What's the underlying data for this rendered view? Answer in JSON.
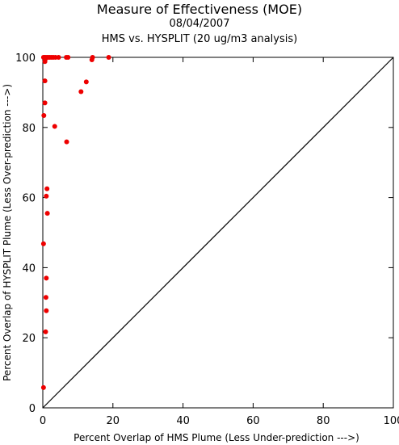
{
  "chart_data": {
    "type": "scatter",
    "title": "Measure of Effectiveness (MOE)",
    "subtitle_date": "08/04/2007",
    "subtitle_analysis": "HMS vs. HYSPLIT  (20 ug/m3 analysis)",
    "xlabel": "Percent Overlap of HMS Plume (Less Under-prediction --->)",
    "ylabel": "Percent Overlap of HYSPLIT Plume (Less Over-prediction --->)",
    "xlim": [
      0,
      100
    ],
    "ylim": [
      0,
      100
    ],
    "xticks": [
      "0",
      "20",
      "40",
      "60",
      "80",
      "100"
    ],
    "yticks": [
      "0",
      "20",
      "40",
      "60",
      "80",
      "100"
    ],
    "grid": false,
    "reference_line": "diagonal y = x",
    "colors": {
      "points": "#ee0000",
      "line": "#000000"
    },
    "points": [
      {
        "x": 0.2,
        "y": 100.0
      },
      {
        "x": 0.5,
        "y": 100.0
      },
      {
        "x": 0.8,
        "y": 100.0
      },
      {
        "x": 1.2,
        "y": 100.0
      },
      {
        "x": 1.6,
        "y": 100.0
      },
      {
        "x": 2.0,
        "y": 100.0
      },
      {
        "x": 2.5,
        "y": 100.0
      },
      {
        "x": 3.0,
        "y": 100.0
      },
      {
        "x": 3.6,
        "y": 100.0
      },
      {
        "x": 4.5,
        "y": 100.0
      },
      {
        "x": 6.7,
        "y": 100.0
      },
      {
        "x": 7.2,
        "y": 100.0
      },
      {
        "x": 14.2,
        "y": 100.0
      },
      {
        "x": 18.8,
        "y": 100.0
      },
      {
        "x": 14.0,
        "y": 99.3
      },
      {
        "x": 0.7,
        "y": 99.5
      },
      {
        "x": 0.6,
        "y": 98.8
      },
      {
        "x": 0.6,
        "y": 93.3
      },
      {
        "x": 12.4,
        "y": 93.0
      },
      {
        "x": 10.9,
        "y": 90.2
      },
      {
        "x": 0.6,
        "y": 87.0
      },
      {
        "x": 0.3,
        "y": 83.4
      },
      {
        "x": 3.4,
        "y": 80.3
      },
      {
        "x": 6.8,
        "y": 75.9
      },
      {
        "x": 1.2,
        "y": 62.5
      },
      {
        "x": 1.0,
        "y": 60.4
      },
      {
        "x": 1.3,
        "y": 55.5
      },
      {
        "x": 0.2,
        "y": 46.8
      },
      {
        "x": 1.0,
        "y": 37.0
      },
      {
        "x": 0.9,
        "y": 31.5
      },
      {
        "x": 1.0,
        "y": 27.7
      },
      {
        "x": 0.8,
        "y": 21.7
      },
      {
        "x": 0.2,
        "y": 5.8
      }
    ]
  }
}
